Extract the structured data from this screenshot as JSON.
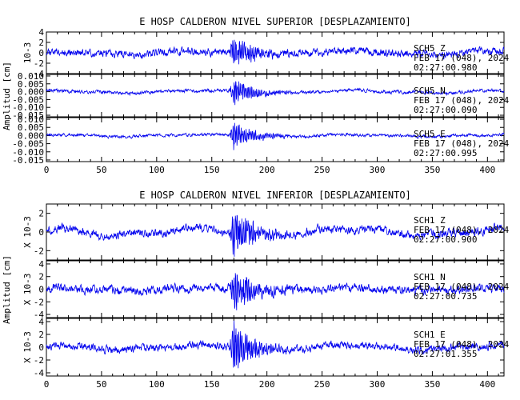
{
  "chart_data": [
    {
      "type": "line",
      "title": "E HOSP CALDERON NIVEL SUPERIOR [DESPLAZAMIENTO]",
      "ylabel": "Amplitud [cm]",
      "xlim": [
        0,
        415
      ],
      "x_ticks": [
        "0",
        "50",
        "100",
        "150",
        "200",
        "250",
        "300",
        "350",
        "400"
      ],
      "traces": [
        {
          "station": "SCH5",
          "component": "Z",
          "date": "FEB 17 (048), 2024",
          "time": "02:27:00.980",
          "scale_label": "10-3",
          "ylim": [
            -4,
            4
          ],
          "y_ticks": [
            {
              "v": 4,
              "t": "4"
            },
            {
              "v": 2,
              "t": "2"
            },
            {
              "v": 0,
              "t": "0"
            },
            {
              "v": -2,
              "t": "-2"
            },
            {
              "v": -4,
              "t": "-4"
            }
          ],
          "noise": 0.55,
          "peak": 3.8,
          "seed": 11,
          "long": 0.4,
          "color": "#0000ee"
        },
        {
          "station": "SCH5",
          "component": "N",
          "date": "FEB 17 (048), 2024",
          "time": "02:27:00.090",
          "scale_label": "",
          "ylim": [
            -0.016,
            0.011
          ],
          "y_ticks": [
            {
              "v": 0.01,
              "t": "0.010"
            },
            {
              "v": 0.005,
              "t": "0.005"
            },
            {
              "v": 0,
              "t": "0.000"
            },
            {
              "v": -0.005,
              "t": "-0.005"
            },
            {
              "v": -0.01,
              "t": "-0.010"
            },
            {
              "v": -0.015,
              "t": "-0.015"
            }
          ],
          "noise": 0.0008,
          "peak": 0.009,
          "seed": 23,
          "long": 0.0012,
          "color": "#0000ee"
        },
        {
          "station": "SCH5",
          "component": "E",
          "date": "FEB 17 (048), 2024",
          "time": "02:27:00.995",
          "scale_label": "",
          "ylim": [
            -0.016,
            0.011
          ],
          "y_ticks": [
            {
              "v": 0.01,
              "t": "0.010"
            },
            {
              "v": 0.005,
              "t": "0.005"
            },
            {
              "v": 0,
              "t": "0.000"
            },
            {
              "v": -0.005,
              "t": "-0.005"
            },
            {
              "v": -0.01,
              "t": "-0.010"
            },
            {
              "v": -0.015,
              "t": "-0.015"
            }
          ],
          "noise": 0.0007,
          "peak": 0.01,
          "seed": 37,
          "long": 0.0008,
          "color": "#0000ee"
        }
      ]
    },
    {
      "type": "line",
      "title": "E HOSP CALDERON NIVEL INFERIOR [DESPLAZAMIENTO]",
      "ylabel": "Amplitud [cm]",
      "xlim": [
        0,
        415
      ],
      "x_ticks": [
        "0",
        "50",
        "100",
        "150",
        "200",
        "250",
        "300",
        "350",
        "400"
      ],
      "traces": [
        {
          "station": "SCH1",
          "component": "Z",
          "date": "FEB 17 (048), 2024",
          "time": "02:27:00.900",
          "scale_label": "X 10-3",
          "ylim": [
            -3,
            3
          ],
          "y_ticks": [
            {
              "v": 2,
              "t": "2"
            },
            {
              "v": 0,
              "t": "0"
            },
            {
              "v": -2,
              "t": "-2"
            }
          ],
          "noise": 0.35,
          "peak": 2.9,
          "seed": 51,
          "long": 0.5,
          "color": "#0000ee"
        },
        {
          "station": "SCH1",
          "component": "N",
          "date": "FEB 17 (048), 2024",
          "time": "02:27:00.735",
          "scale_label": "X 10-3",
          "ylim": [
            -4.5,
            4.5
          ],
          "y_ticks": [
            {
              "v": 4,
              "t": "4"
            },
            {
              "v": 2,
              "t": "2"
            },
            {
              "v": 0,
              "t": "0"
            },
            {
              "v": -2,
              "t": "-2"
            },
            {
              "v": -4,
              "t": "-4"
            }
          ],
          "noise": 0.5,
          "peak": 4.2,
          "seed": 67,
          "long": 0.3,
          "color": "#0000ee"
        },
        {
          "station": "SCH1",
          "component": "E",
          "date": "FEB 17 (048), 2024",
          "time": "02:27:01.355",
          "scale_label": "X 10-3",
          "ylim": [
            -4.5,
            4.5
          ],
          "y_ticks": [
            {
              "v": 4,
              "t": "4"
            },
            {
              "v": 2,
              "t": "2"
            },
            {
              "v": 0,
              "t": "0"
            },
            {
              "v": -2,
              "t": "-2"
            },
            {
              "v": -4,
              "t": "-4"
            }
          ],
          "noise": 0.45,
          "peak": 4.3,
          "seed": 83,
          "long": 0.5,
          "color": "#0000ee"
        }
      ]
    }
  ]
}
